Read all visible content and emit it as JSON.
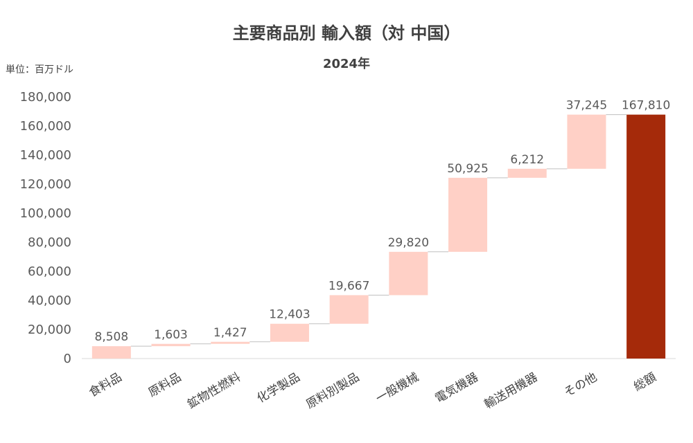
{
  "chart_data": {
    "type": "bar",
    "subtype": "waterfall",
    "title": "主要商品別 輸入額（対 中国）",
    "subtitle": "2024年",
    "unit_label": "単位：百万ドル",
    "categories": [
      "食料品",
      "原料品",
      "鉱物性燃料",
      "化学製品",
      "原料別製品",
      "一般機械",
      "電気機器",
      "輸送用機器",
      "その他",
      "総額"
    ],
    "values": [
      8508,
      1603,
      1427,
      12403,
      19667,
      29820,
      50925,
      6212,
      37245,
      167810
    ],
    "value_labels": [
      "8,508",
      "1,603",
      "1,427",
      "12,403",
      "19,667",
      "29,820",
      "50,925",
      "6,212",
      "37,245",
      "167,810"
    ],
    "total_index": 9,
    "ylim": [
      0,
      180000
    ],
    "y_ticks": [
      0,
      20000,
      40000,
      60000,
      80000,
      100000,
      120000,
      140000,
      160000,
      180000
    ],
    "y_tick_labels": [
      "0",
      "20,000",
      "40,000",
      "60,000",
      "80,000",
      "100,000",
      "120,000",
      "140,000",
      "160,000",
      "180,000"
    ],
    "colors": {
      "increment": "#FFD0C6",
      "total": "#A52A0A",
      "connector": "#BFBFBF",
      "axis": "#D9D9D9"
    },
    "grid": false,
    "legend": "none"
  }
}
